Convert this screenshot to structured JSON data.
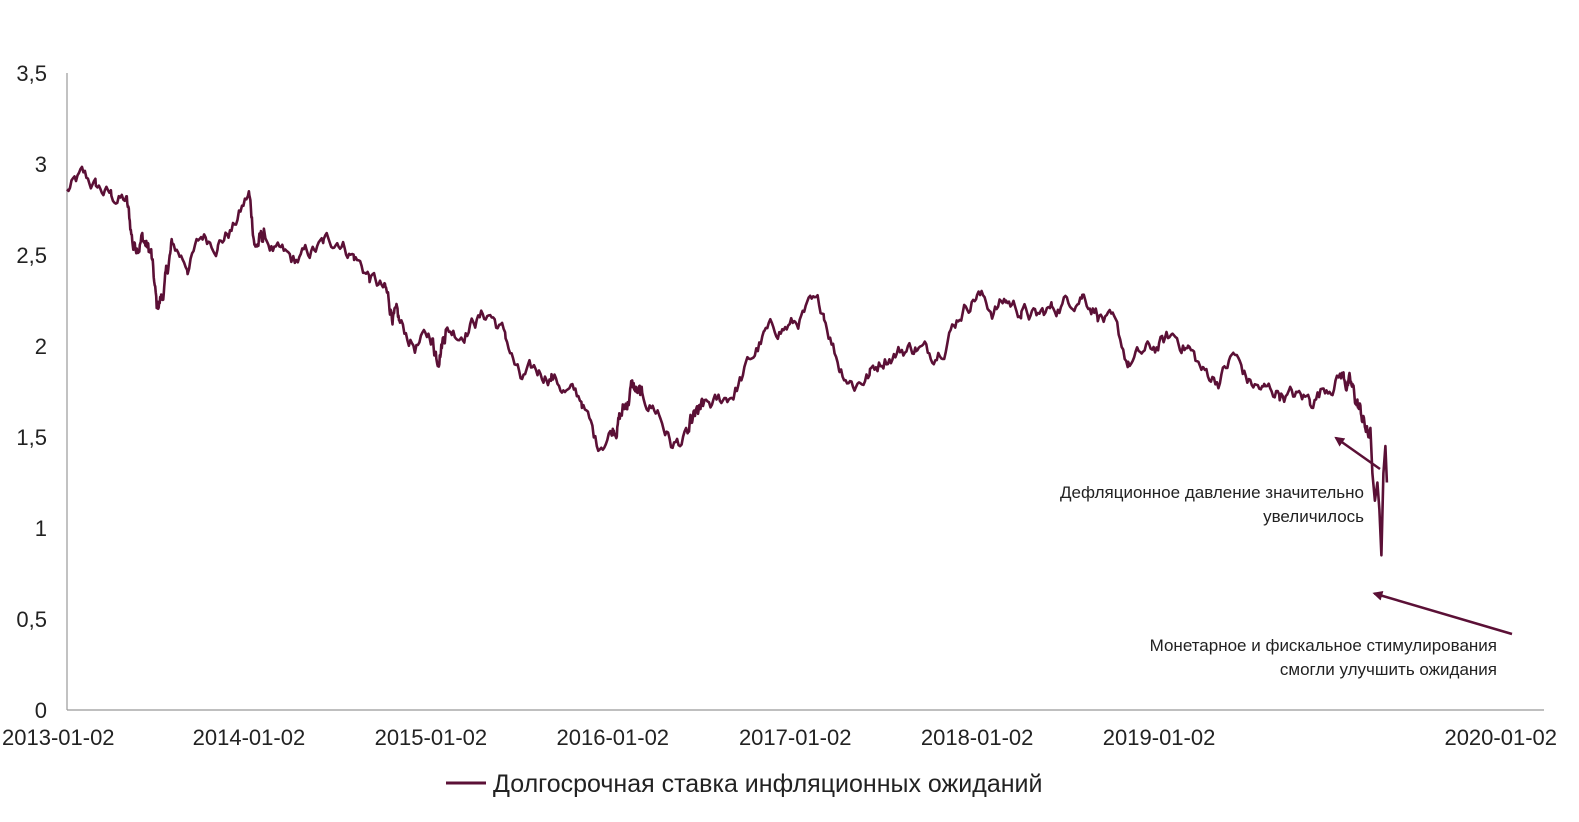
{
  "chart_data": {
    "type": "line",
    "title": "",
    "xlabel": "",
    "ylabel": "",
    "ylim": [
      0,
      3.5
    ],
    "y_ticks": [
      "0",
      "0,5",
      "1",
      "1,5",
      "2",
      "2,5",
      "3",
      "3,5"
    ],
    "y_tick_values": [
      0,
      0.5,
      1,
      1.5,
      2,
      2.5,
      3,
      3.5
    ],
    "x_ticks": [
      "2013-01-02",
      "2014-01-02",
      "2015-01-02",
      "2016-01-02",
      "2017-01-02",
      "2018-01-02",
      "2019-01-02",
      "2020-01-02"
    ],
    "grid": false,
    "legend_position": "bottom",
    "color": "#5b1036",
    "series": [
      {
        "name": "Долгосрочная ставка инфляционных ожиданий",
        "x": [
          "2013-01-02",
          "2013-02-01",
          "2013-03-01",
          "2013-04-01",
          "2013-05-01",
          "2013-05-15",
          "2013-06-01",
          "2013-06-20",
          "2013-07-01",
          "2013-07-15",
          "2013-08-01",
          "2013-09-01",
          "2013-10-01",
          "2013-11-01",
          "2013-12-01",
          "2014-01-02",
          "2014-01-15",
          "2014-02-01",
          "2014-03-01",
          "2014-04-01",
          "2014-05-01",
          "2014-06-01",
          "2014-07-01",
          "2014-08-01",
          "2014-09-01",
          "2014-10-01",
          "2014-10-15",
          "2014-11-01",
          "2014-12-01",
          "2015-01-02",
          "2015-01-15",
          "2015-02-01",
          "2015-03-01",
          "2015-04-01",
          "2015-05-01",
          "2015-06-01",
          "2015-07-01",
          "2015-08-01",
          "2015-09-01",
          "2015-10-01",
          "2015-11-01",
          "2015-12-01",
          "2016-01-02",
          "2016-01-15",
          "2016-02-01",
          "2016-02-10",
          "2016-03-01",
          "2016-04-01",
          "2016-05-01",
          "2016-06-01",
          "2016-06-15",
          "2016-07-01",
          "2016-08-01",
          "2016-09-01",
          "2016-10-01",
          "2016-11-01",
          "2016-12-01",
          "2017-01-02",
          "2017-02-01",
          "2017-03-01",
          "2017-04-01",
          "2017-05-01",
          "2017-06-01",
          "2017-07-01",
          "2017-08-01",
          "2017-09-01",
          "2017-10-01",
          "2017-11-01",
          "2017-12-01",
          "2018-01-02",
          "2018-02-01",
          "2018-03-01",
          "2018-04-01",
          "2018-05-01",
          "2018-06-01",
          "2018-07-01",
          "2018-08-01",
          "2018-09-01",
          "2018-10-01",
          "2018-11-01",
          "2018-12-01",
          "2019-01-02",
          "2019-02-01",
          "2019-03-01",
          "2019-04-01",
          "2019-05-01",
          "2019-06-01",
          "2019-07-01",
          "2019-08-01",
          "2019-09-01",
          "2019-10-01",
          "2019-11-01",
          "2019-12-01",
          "2020-01-02",
          "2020-01-20",
          "2020-02-01",
          "2020-02-15",
          "2020-02-25",
          "2020-03-01",
          "2020-03-05",
          "2020-03-10",
          "2020-03-15",
          "2020-03-19",
          "2020-03-23",
          "2020-03-27",
          "2020-03-31",
          "2020-04-03"
        ],
        "values": [
          2.85,
          2.92,
          2.87,
          2.82,
          2.8,
          2.55,
          2.6,
          2.5,
          2.2,
          2.3,
          2.55,
          2.45,
          2.6,
          2.58,
          2.65,
          2.83,
          2.55,
          2.6,
          2.5,
          2.45,
          2.5,
          2.55,
          2.6,
          2.5,
          2.38,
          2.3,
          2.2,
          2.1,
          2.0,
          2.05,
          1.95,
          2.1,
          2.08,
          2.15,
          2.18,
          2.05,
          1.8,
          1.85,
          1.85,
          1.75,
          1.7,
          1.45,
          1.55,
          1.6,
          1.7,
          1.78,
          1.7,
          1.65,
          1.45,
          1.5,
          1.6,
          1.65,
          1.68,
          1.75,
          1.9,
          2.05,
          2.1,
          2.12,
          2.2,
          2.18,
          1.9,
          1.8,
          1.85,
          1.95,
          1.98,
          2.0,
          1.95,
          2.05,
          2.2,
          2.3,
          2.2,
          2.25,
          2.2,
          2.15,
          2.2,
          2.25,
          2.3,
          2.2,
          2.1,
          1.9,
          1.95,
          2.0,
          2.05,
          2.0,
          1.85,
          1.82,
          1.95,
          1.8,
          1.75,
          1.75,
          1.72,
          1.7,
          1.78,
          1.85,
          1.78,
          1.7,
          1.6,
          1.5,
          1.55,
          1.3,
          1.15,
          1.25,
          1.1,
          0.85,
          1.3,
          1.45,
          1.25
        ]
      }
    ],
    "annotations": [
      {
        "lines": [
          "Дефляционное давление значительно",
          "увеличилось"
        ],
        "target_x": "2020-02-25",
        "target_y": 1.55
      },
      {
        "lines": [
          "Монетарное и фискальное стимулирования",
          "смогли улучшить ожидания"
        ],
        "target_x": "2020-03-25",
        "target_y": 0.75
      }
    ]
  }
}
